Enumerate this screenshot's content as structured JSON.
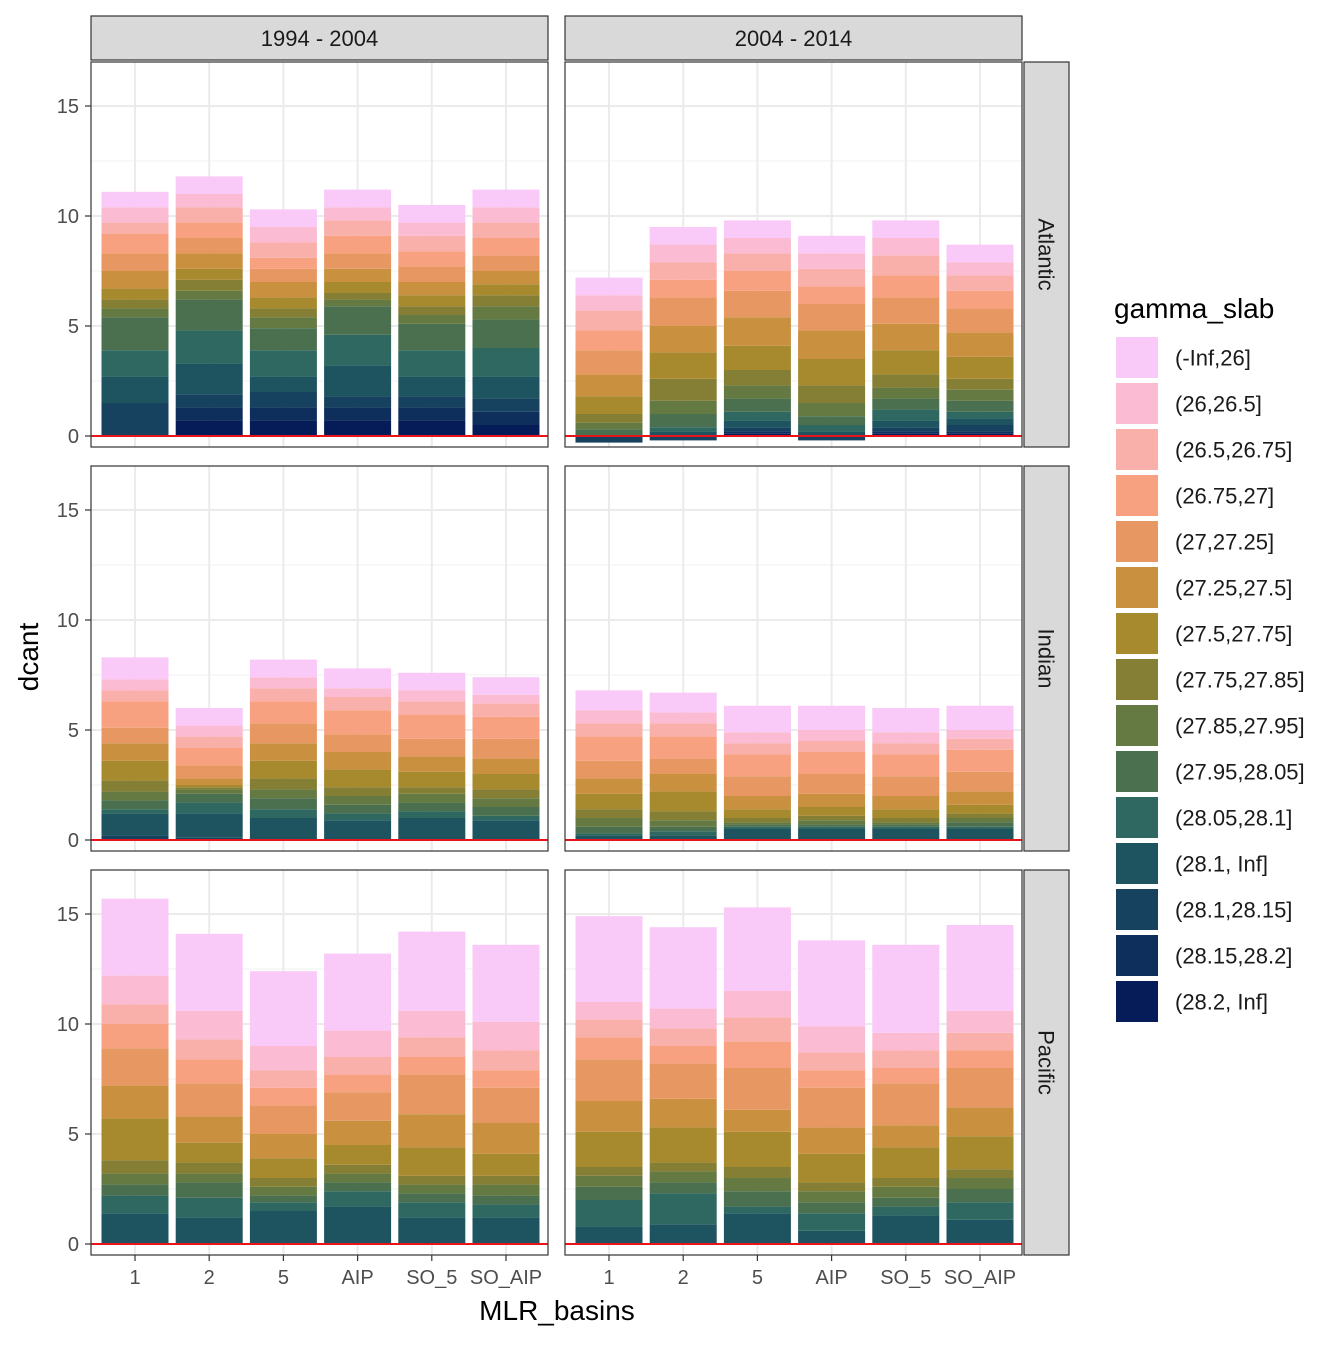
{
  "chart_data": {
    "type": "bar",
    "stacked": true,
    "xlabel": "MLR_basins",
    "ylabel": "dcant",
    "ylim": [
      -0.5,
      17
    ],
    "yticks": [
      0,
      5,
      10,
      15
    ],
    "grid": true,
    "legend_position": "right",
    "legend_title": "gamma_slab",
    "reference_line": {
      "y": 0,
      "color": "#e8141b"
    },
    "categories": [
      "1",
      "2",
      "5",
      "AIP",
      "SO_5",
      "SO_AIP"
    ],
    "col_facets": [
      "1994 - 2004",
      "2004 - 2014"
    ],
    "row_facets": [
      "Atlantic",
      "Indian",
      "Pacific"
    ],
    "series": [
      {
        "name": "(-Inf,26]",
        "color": "#f9c9f7"
      },
      {
        "name": "(26,26.5]",
        "color": "#fbbbd2"
      },
      {
        "name": "(26.5,26.75]",
        "color": "#f9afaa"
      },
      {
        "name": "(26.75,27]",
        "color": "#f7a180"
      },
      {
        "name": "(27,27.25]",
        "color": "#e79862"
      },
      {
        "name": "(27.25,27.5]",
        "color": "#c99040"
      },
      {
        "name": "(27.5,27.75]",
        "color": "#a78a2e"
      },
      {
        "name": "(27.75,27.85]",
        "color": "#857f36"
      },
      {
        "name": "(27.85,27.95]",
        "color": "#657a42"
      },
      {
        "name": "(27.95,28.05]",
        "color": "#4a7050"
      },
      {
        "name": "(28.05,28.1]",
        "color": "#2e6860"
      },
      {
        "name": "(28.1, Inf]",
        "color": "#1e5460"
      },
      {
        "name": "(28.1,28.15]",
        "color": "#16415f"
      },
      {
        "name": "(28.15,28.2]",
        "color": "#0e2e5c"
      },
      {
        "name": "(28.2, Inf]",
        "color": "#051c58"
      }
    ],
    "panels": [
      {
        "row": "Atlantic",
        "col": "1994 - 2004",
        "bars": [
          {
            "category": "1",
            "values": [
              0.7,
              0.7,
              0.5,
              0.9,
              0.8,
              0.8,
              0.5,
              0.4,
              0.4,
              1.5,
              1.2,
              1.2,
              1.5,
              0,
              0
            ]
          },
          {
            "category": "2",
            "values": [
              0.8,
              0.6,
              0.7,
              0.7,
              0.7,
              0.7,
              0.5,
              0.5,
              0.4,
              1.4,
              1.5,
              1.4,
              0.6,
              0.6,
              0.7
            ]
          },
          {
            "category": "5",
            "values": [
              0.8,
              0.7,
              0.7,
              0.5,
              0.6,
              0.7,
              0.5,
              0.4,
              0.5,
              1.0,
              1.2,
              0.7,
              0.7,
              0.6,
              0.7
            ]
          },
          {
            "category": "AIP",
            "values": [
              0.8,
              0.6,
              0.7,
              0.8,
              0.7,
              0.6,
              0.5,
              0.3,
              0.3,
              1.3,
              1.4,
              1.4,
              0.5,
              0.6,
              0.7
            ]
          },
          {
            "category": "SO_5",
            "values": [
              0.8,
              0.6,
              0.7,
              0.7,
              0.7,
              0.6,
              0.5,
              0.4,
              0.4,
              1.2,
              1.2,
              0.9,
              0.5,
              0.6,
              0.7
            ]
          },
          {
            "category": "SO_AIP",
            "values": [
              0.8,
              0.7,
              0.7,
              0.8,
              0.7,
              0.6,
              0.5,
              0.5,
              0.6,
              1.3,
              1.3,
              1.0,
              0.6,
              0.6,
              0.5
            ]
          }
        ]
      },
      {
        "row": "Atlantic",
        "col": "2004 - 2014",
        "bars": [
          {
            "category": "1",
            "values": [
              0.8,
              0.7,
              0.9,
              0.9,
              1.1,
              1.0,
              0.8,
              0.4,
              0.3,
              0.3,
              0,
              0,
              -0.3,
              0,
              0
            ]
          },
          {
            "category": "2",
            "values": [
              0.8,
              0.8,
              0.8,
              0.8,
              1.3,
              1.2,
              1.2,
              1.0,
              0.6,
              0.6,
              0.2,
              0.2,
              -0.2,
              0,
              0
            ]
          },
          {
            "category": "5",
            "values": [
              0.8,
              0.7,
              0.8,
              0.9,
              1.2,
              1.3,
              1.1,
              0.7,
              0.6,
              0.6,
              0.4,
              0.3,
              0.2,
              0.1,
              0.1
            ]
          },
          {
            "category": "AIP",
            "values": [
              0.8,
              0.7,
              0.8,
              0.8,
              1.2,
              1.3,
              1.2,
              0.8,
              0.6,
              0.4,
              0.3,
              0.2,
              -0.2,
              0,
              0
            ]
          },
          {
            "category": "SO_5",
            "values": [
              0.8,
              0.8,
              0.9,
              1.0,
              1.2,
              1.2,
              1.1,
              0.6,
              0.5,
              0.5,
              0.5,
              0.3,
              0.2,
              0.1,
              0.1
            ]
          },
          {
            "category": "SO_AIP",
            "values": [
              0.8,
              0.6,
              0.7,
              0.8,
              1.1,
              1.1,
              1.0,
              0.5,
              0.5,
              0.5,
              0.3,
              0.3,
              0.3,
              0.1,
              0.1
            ]
          }
        ]
      },
      {
        "row": "Indian",
        "col": "1994 - 2004",
        "bars": [
          {
            "category": "1",
            "values": [
              1.0,
              0.5,
              0.5,
              1.2,
              0.7,
              0.8,
              0.9,
              0.5,
              0.4,
              0.4,
              0.2,
              1.0,
              0.2,
              0,
              0
            ]
          },
          {
            "category": "2",
            "values": [
              0.8,
              0.5,
              0.5,
              0.8,
              0.6,
              0.3,
              0.1,
              0.1,
              0.2,
              0.4,
              0.5,
              1.1,
              0.1,
              0,
              0
            ]
          },
          {
            "category": "5",
            "values": [
              0.8,
              0.5,
              0.6,
              1.0,
              0.9,
              0.8,
              0.8,
              0.5,
              0.4,
              0.5,
              0.4,
              1.0,
              0,
              0,
              0
            ]
          },
          {
            "category": "AIP",
            "values": [
              0.9,
              0.4,
              0.6,
              1.1,
              0.8,
              0.8,
              0.8,
              0.4,
              0.4,
              0.4,
              0.3,
              0.9,
              0,
              0,
              0
            ]
          },
          {
            "category": "SO_5",
            "values": [
              0.8,
              0.5,
              0.6,
              1.1,
              0.8,
              0.7,
              0.7,
              0.3,
              0.4,
              0.4,
              0.3,
              1.0,
              0,
              0,
              0
            ]
          },
          {
            "category": "SO_AIP",
            "values": [
              0.8,
              0.4,
              0.6,
              1.0,
              0.9,
              0.7,
              0.7,
              0.4,
              0.4,
              0.4,
              0.2,
              0.9,
              0,
              0,
              0
            ]
          }
        ]
      },
      {
        "row": "Indian",
        "col": "2004 - 2014",
        "bars": [
          {
            "category": "1",
            "values": [
              0.9,
              0.6,
              0.6,
              1.1,
              0.8,
              0.7,
              0.7,
              0.4,
              0.4,
              0.3,
              0.1,
              0.2,
              0,
              0,
              0
            ]
          },
          {
            "category": "2",
            "values": [
              0.9,
              0.5,
              0.6,
              1.0,
              0.7,
              0.8,
              0.9,
              0.4,
              0.3,
              0.2,
              0.2,
              0.2,
              0,
              0,
              0
            ]
          },
          {
            "category": "5",
            "values": [
              1.2,
              0.5,
              0.5,
              1.0,
              0.9,
              0.6,
              0.4,
              0.2,
              0.1,
              0.1,
              0.1,
              0.5,
              0,
              0,
              0
            ]
          },
          {
            "category": "AIP",
            "values": [
              1.1,
              0.5,
              0.5,
              1.0,
              0.9,
              0.6,
              0.4,
              0.2,
              0.2,
              0.1,
              0.1,
              0.5,
              0,
              0,
              0
            ]
          },
          {
            "category": "SO_5",
            "values": [
              1.1,
              0.5,
              0.5,
              1.0,
              0.9,
              0.6,
              0.4,
              0.2,
              0.1,
              0.1,
              0.1,
              0.5,
              0,
              0,
              0
            ]
          },
          {
            "category": "SO_AIP",
            "values": [
              1.1,
              0.4,
              0.5,
              1.0,
              0.9,
              0.6,
              0.4,
              0.2,
              0.2,
              0.2,
              0.1,
              0.5,
              0,
              0,
              0
            ]
          }
        ]
      },
      {
        "row": "Pacific",
        "col": "1994 - 2004",
        "bars": [
          {
            "category": "1",
            "values": [
              3.5,
              1.3,
              0.9,
              1.1,
              1.7,
              1.5,
              1.9,
              0.6,
              0.5,
              0.5,
              0.8,
              1.4,
              0,
              0,
              0
            ]
          },
          {
            "category": "2",
            "values": [
              3.5,
              1.3,
              0.9,
              1.1,
              1.5,
              1.2,
              0.9,
              0.5,
              0.4,
              0.7,
              0.9,
              1.2,
              0,
              0,
              0
            ]
          },
          {
            "category": "5",
            "values": [
              3.4,
              1.1,
              0.8,
              0.8,
              1.3,
              1.1,
              0.9,
              0.4,
              0.4,
              0.3,
              0.4,
              1.5,
              0,
              0,
              0
            ]
          },
          {
            "category": "AIP",
            "values": [
              3.5,
              1.2,
              0.8,
              0.8,
              1.3,
              1.1,
              0.9,
              0.4,
              0.4,
              0.4,
              0.7,
              1.7,
              0,
              0,
              0
            ]
          },
          {
            "category": "SO_5",
            "values": [
              3.6,
              1.2,
              0.9,
              0.8,
              1.8,
              1.5,
              1.3,
              0.4,
              0.4,
              0.4,
              0.7,
              1.2,
              0,
              0,
              0
            ]
          },
          {
            "category": "SO_AIP",
            "values": [
              3.5,
              1.3,
              0.9,
              0.8,
              1.6,
              1.4,
              1.0,
              0.4,
              0.5,
              0.4,
              0.6,
              1.2,
              0,
              0,
              0
            ]
          }
        ]
      },
      {
        "row": "Pacific",
        "col": "2004 - 2014",
        "bars": [
          {
            "category": "1",
            "values": [
              3.9,
              0.8,
              0.8,
              1.0,
              1.9,
              1.4,
              1.6,
              0.4,
              0.5,
              0.6,
              1.2,
              0.8,
              0,
              0,
              0
            ]
          },
          {
            "category": "2",
            "values": [
              3.7,
              0.9,
              0.8,
              0.8,
              1.6,
              1.3,
              1.6,
              0.4,
              0.5,
              0.5,
              1.4,
              0.9,
              0,
              0,
              0
            ]
          },
          {
            "category": "5",
            "values": [
              3.8,
              1.2,
              1.1,
              1.2,
              1.9,
              1.0,
              1.6,
              0.5,
              0.6,
              0.7,
              0.3,
              1.4,
              0,
              0,
              0
            ]
          },
          {
            "category": "AIP",
            "values": [
              3.9,
              1.2,
              0.8,
              0.8,
              1.8,
              1.2,
              1.3,
              0.4,
              0.5,
              0.5,
              0.8,
              0.6,
              0,
              0,
              0
            ]
          },
          {
            "category": "SO_5",
            "values": [
              4.0,
              0.8,
              0.8,
              0.7,
              1.9,
              1.0,
              1.4,
              0.4,
              0.5,
              0.4,
              0.4,
              1.3,
              0,
              0,
              0
            ]
          },
          {
            "category": "SO_AIP",
            "values": [
              3.9,
              1.0,
              0.8,
              0.8,
              1.8,
              1.3,
              1.5,
              0.4,
              0.5,
              0.6,
              0.8,
              1.1,
              0,
              0,
              0
            ]
          }
        ]
      }
    ]
  }
}
